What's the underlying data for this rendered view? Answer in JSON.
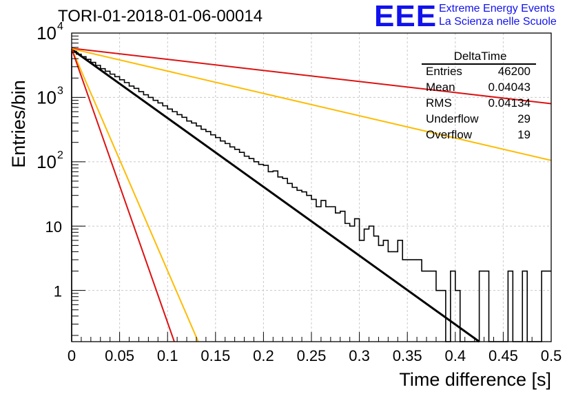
{
  "plot_title": "TORI-01-2018-01-06-00014",
  "logo": {
    "mark": "EEE",
    "line1": "Extreme Energy Events",
    "line2": "La Scienza nelle Scuole",
    "color": "#1111ee"
  },
  "stats": {
    "title": "DeltaTime",
    "rows": [
      {
        "key": "Entries",
        "value": "46200"
      },
      {
        "key": "Mean",
        "value": "0.04043"
      },
      {
        "key": "RMS",
        "value": "0.04134"
      },
      {
        "key": "Underflow",
        "value": "29"
      },
      {
        "key": "Overflow",
        "value": "19"
      }
    ]
  },
  "chart_data": {
    "type": "line",
    "title": "TORI-01-2018-01-06-00014",
    "xlabel": "Time difference [s]",
    "ylabel": "Entries/bin",
    "xlim": [
      0,
      0.5
    ],
    "ylim": [
      0.16,
      10000
    ],
    "yscale": "log",
    "x_ticks": [
      "0",
      "0.05",
      "0.1",
      "0.15",
      "0.2",
      "0.25",
      "0.3",
      "0.35",
      "0.4",
      "0.45",
      "0.5"
    ],
    "y_ticks": [
      {
        "value": 1,
        "label": "1"
      },
      {
        "value": 10,
        "label": "10"
      },
      {
        "value": 100,
        "label": "10",
        "exp": "2"
      },
      {
        "value": 1000,
        "label": "10",
        "exp": "3"
      },
      {
        "value": 10000,
        "label": "10",
        "exp": "4"
      }
    ],
    "histogram": {
      "bin_width": 0.005,
      "values": [
        5200,
        4700,
        4300,
        3900,
        3500,
        3150,
        2800,
        2550,
        2300,
        2100,
        1880,
        1700,
        1500,
        1380,
        1230,
        1100,
        1000,
        900,
        820,
        740,
        660,
        600,
        540,
        490,
        430,
        400,
        360,
        320,
        295,
        262,
        238,
        210,
        192,
        170,
        156,
        140,
        122,
        112,
        100,
        91,
        88,
        70,
        72,
        58,
        55,
        46,
        40,
        36,
        34,
        30,
        26,
        20,
        25,
        20,
        20,
        16,
        17,
        11,
        10,
        13,
        6,
        9,
        10,
        7,
        5,
        6,
        4,
        4,
        6,
        3,
        3,
        3,
        3,
        2,
        2,
        2,
        1,
        1,
        0,
        2,
        1,
        0,
        0,
        0,
        0,
        2,
        2,
        0,
        0,
        0,
        0,
        2,
        0,
        0,
        2,
        0,
        0,
        0,
        2,
        2
      ]
    },
    "series": [
      {
        "name": "",
        "color": "#000000",
        "x": [
          0,
          0.425
        ],
        "y": [
          5600,
          0.16
        ]
      },
      {
        "name": "",
        "color": "#dd1111",
        "x": [
          0,
          0.5
        ],
        "y": [
          5800,
          800
        ]
      },
      {
        "name": "",
        "color": "#ffbb00",
        "x": [
          0,
          0.5
        ],
        "y": [
          5700,
          105
        ]
      },
      {
        "name": "",
        "color": "#ffbb00",
        "x": [
          0,
          0.132
        ],
        "y": [
          5700,
          0.16
        ]
      },
      {
        "name": "",
        "color": "#dd1111",
        "x": [
          0,
          0.107
        ],
        "y": [
          5700,
          0.16
        ]
      }
    ],
    "grid": true
  }
}
